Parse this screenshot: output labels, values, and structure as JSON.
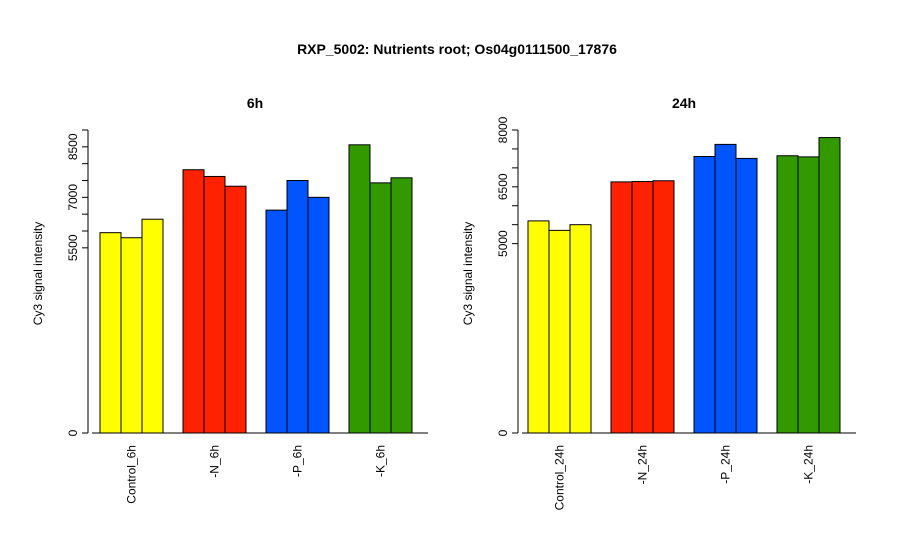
{
  "figure": {
    "title": "RXP_5002: Nutrients root; Os04g0111500_17876"
  },
  "chart_data": [
    {
      "type": "bar",
      "title": "6h",
      "ylabel": "Cy3 signal intensity",
      "ylim": [
        0,
        9000
      ],
      "yticks": [
        0,
        5500,
        7000,
        8500
      ],
      "minor_yticks": [
        6000,
        6500,
        7500,
        8000,
        9000
      ],
      "categories": [
        "Control_6h",
        "-N_6h",
        "-P_6h",
        "-K_6h"
      ],
      "colors": [
        "#ffff00",
        "#ff2200",
        "#0055ff",
        "#339900"
      ],
      "groups": [
        {
          "category": "Control_6h",
          "values": [
            5950,
            5800,
            6350
          ]
        },
        {
          "category": "-N_6h",
          "values": [
            7820,
            7620,
            7330
          ]
        },
        {
          "category": "-P_6h",
          "values": [
            6620,
            7500,
            7000
          ]
        },
        {
          "category": "-K_6h",
          "values": [
            8560,
            7430,
            7580
          ]
        }
      ]
    },
    {
      "type": "bar",
      "title": "24h",
      "ylabel": "Cy3 signal intensity",
      "ylim": [
        0,
        8000
      ],
      "yticks": [
        0,
        5000,
        6500,
        8000
      ],
      "minor_yticks": [
        5500,
        6000,
        7000,
        7500
      ],
      "categories": [
        "Control_24h",
        "-N_24h",
        "-P_24h",
        "-K_24h"
      ],
      "colors": [
        "#ffff00",
        "#ff2200",
        "#0055ff",
        "#339900"
      ],
      "groups": [
        {
          "category": "Control_24h",
          "values": [
            5600,
            5350,
            5500
          ]
        },
        {
          "category": "-N_24h",
          "values": [
            6630,
            6640,
            6660
          ]
        },
        {
          "category": "-P_24h",
          "values": [
            7300,
            7620,
            7250
          ]
        },
        {
          "category": "-K_24h",
          "values": [
            7320,
            7290,
            7800
          ]
        }
      ]
    }
  ]
}
